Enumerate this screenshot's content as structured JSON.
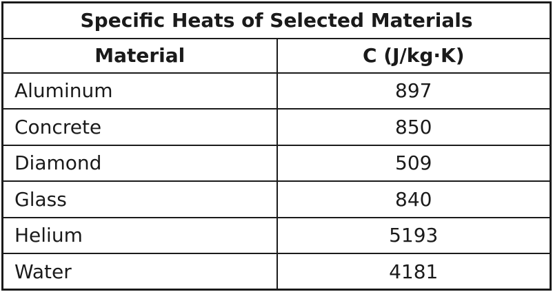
{
  "table": {
    "title": "Specific Heats of Selected Materials",
    "header": [
      "Material",
      "C (J/kg·K)"
    ],
    "rows": [
      [
        "Aluminum",
        897
      ],
      [
        "Concrete",
        850
      ],
      [
        "Diamond",
        509
      ],
      [
        "Glass",
        840
      ],
      [
        "Helium",
        5193
      ],
      [
        "Water",
        4181
      ]
    ]
  }
}
